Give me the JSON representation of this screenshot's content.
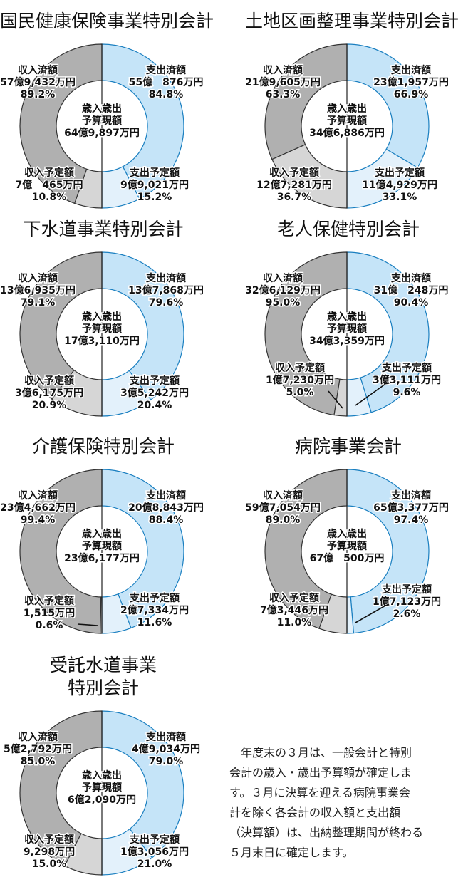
{
  "note": {
    "lines": [
      "　年度末の３月は、一般会計と特別",
      "会計の歳入・歳出予算額が確定しま",
      "す。３月に決算を迎える病院事業会",
      "計を除く各会計の収入額と支出額",
      "（決算額）は、出納整理期間が終わる",
      "５月末日に確定します。"
    ]
  },
  "colors": {
    "spent": "#c5e4f8",
    "spent_planned": "#e3f1fb",
    "received": "#b0b0b0",
    "received_planned": "#d6d6d6",
    "stroke": "#1a7fc0"
  },
  "chart_data": [
    {
      "type": "pie",
      "title": [
        "国民健康保険事業特別会計"
      ],
      "center": [
        "歳入歳出",
        "予算現額",
        "64億9,897万円"
      ],
      "slices": [
        {
          "name": "支出済額",
          "amount": "55億　876万円",
          "percent": 84.8,
          "side": "spent"
        },
        {
          "name": "支出予定額",
          "amount": "9億9,021万円",
          "percent": 15.2,
          "side": "spent"
        },
        {
          "name": "収入済額",
          "amount": "57億9,432万円",
          "percent": 89.2,
          "side": "received"
        },
        {
          "name": "収入予定額",
          "amount": "7億　465万円",
          "percent": 10.8,
          "side": "received"
        }
      ]
    },
    {
      "type": "pie",
      "title": [
        "土地区画整理事業特別会計"
      ],
      "center": [
        "歳入歳出",
        "予算現額",
        "34億6,886万円"
      ],
      "slices": [
        {
          "name": "支出済額",
          "amount": "23億1,957万円",
          "percent": 66.9,
          "side": "spent"
        },
        {
          "name": "支出予定額",
          "amount": "11億4,929万円",
          "percent": 33.1,
          "side": "spent"
        },
        {
          "name": "収入済額",
          "amount": "21億9,605万円",
          "percent": 63.3,
          "side": "received"
        },
        {
          "name": "収入予定額",
          "amount": "12億7,281万円",
          "percent": 36.7,
          "side": "received"
        }
      ]
    },
    {
      "type": "pie",
      "title": [
        "下水道事業特別会計"
      ],
      "center": [
        "歳入歳出",
        "予算現額",
        "17億3,110万円"
      ],
      "slices": [
        {
          "name": "支出済額",
          "amount": "13億7,868万円",
          "percent": 79.6,
          "side": "spent"
        },
        {
          "name": "支出予定額",
          "amount": "3億5,242万円",
          "percent": 20.4,
          "side": "spent"
        },
        {
          "name": "収入済額",
          "amount": "13億6,935万円",
          "percent": 79.1,
          "side": "received"
        },
        {
          "name": "収入予定額",
          "amount": "3億6,175万円",
          "percent": 20.9,
          "side": "received"
        }
      ]
    },
    {
      "type": "pie",
      "title": [
        "老人保健特別会計"
      ],
      "center": [
        "歳入歳出",
        "予算現額",
        "34億3,359万円"
      ],
      "slices": [
        {
          "name": "支出済額",
          "amount": "31億　248万円",
          "percent": 90.4,
          "side": "spent"
        },
        {
          "name": "支出予定額",
          "amount": "3億3,111万円",
          "percent": 9.6,
          "side": "spent"
        },
        {
          "name": "収入済額",
          "amount": "32億6,129万円",
          "percent": 95.0,
          "side": "received"
        },
        {
          "name": "収入予定額",
          "amount": "1億7,230万円",
          "percent": 5.0,
          "side": "received"
        }
      ]
    },
    {
      "type": "pie",
      "title": [
        "介護保険特別会計"
      ],
      "center": [
        "歳入歳出",
        "予算現額",
        "23億6,177万円"
      ],
      "slices": [
        {
          "name": "支出済額",
          "amount": "20億8,843万円",
          "percent": 88.4,
          "side": "spent"
        },
        {
          "name": "支出予定額",
          "amount": "2億7,334万円",
          "percent": 11.6,
          "side": "spent"
        },
        {
          "name": "収入済額",
          "amount": "23億4,662万円",
          "percent": 99.4,
          "side": "received"
        },
        {
          "name": "収入予定額",
          "amount": "1,515万円",
          "percent": 0.6,
          "side": "received"
        }
      ]
    },
    {
      "type": "pie",
      "title": [
        "病院事業会計"
      ],
      "center": [
        "歳入歳出",
        "予算現額",
        "67億　500万円"
      ],
      "slices": [
        {
          "name": "支出済額",
          "amount": "65億3,377万円",
          "percent": 97.4,
          "side": "spent"
        },
        {
          "name": "支出予定額",
          "amount": "1億7,123万円",
          "percent": 2.6,
          "side": "spent"
        },
        {
          "name": "収入済額",
          "amount": "59億7,054万円",
          "percent": 89.0,
          "side": "received"
        },
        {
          "name": "収入予定額",
          "amount": "7億3,446万円",
          "percent": 11.0,
          "side": "received"
        }
      ]
    },
    {
      "type": "pie",
      "title": [
        "受託水道事業",
        "特別会計"
      ],
      "center": [
        "歳入歳出",
        "予算現額",
        "6億2,090万円"
      ],
      "slices": [
        {
          "name": "支出済額",
          "amount": "4億9,034万円",
          "percent": 79.0,
          "side": "spent"
        },
        {
          "name": "支出予定額",
          "amount": "1億3,056万円",
          "percent": 21.0,
          "side": "spent"
        },
        {
          "name": "収入済額",
          "amount": "5億2,792万円",
          "percent": 85.0,
          "side": "received"
        },
        {
          "name": "収入予定額",
          "amount": "9,298万円",
          "percent": 15.0,
          "side": "received"
        }
      ]
    }
  ]
}
